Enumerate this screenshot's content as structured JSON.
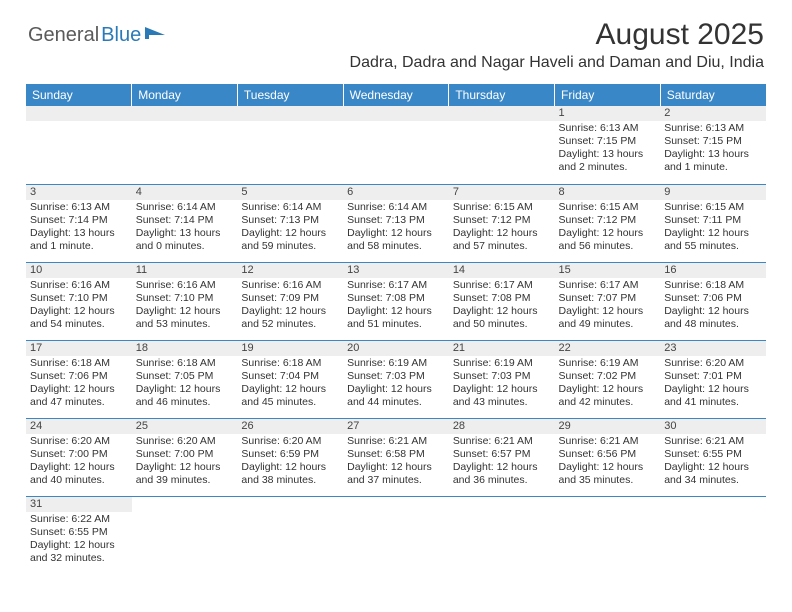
{
  "logo": {
    "part1": "General",
    "part2": "Blue"
  },
  "title": "August 2025",
  "location": "Dadra, Dadra and Nagar Haveli and Daman and Diu, India",
  "header_bg": "#3a87c7",
  "days_of_week": [
    "Sunday",
    "Monday",
    "Tuesday",
    "Wednesday",
    "Thursday",
    "Friday",
    "Saturday"
  ],
  "weeks": [
    [
      null,
      null,
      null,
      null,
      null,
      {
        "n": "1",
        "sunrise": "6:13 AM",
        "sunset": "7:15 PM",
        "daylight": "13 hours and 2 minutes."
      },
      {
        "n": "2",
        "sunrise": "6:13 AM",
        "sunset": "7:15 PM",
        "daylight": "13 hours and 1 minute."
      }
    ],
    [
      {
        "n": "3",
        "sunrise": "6:13 AM",
        "sunset": "7:14 PM",
        "daylight": "13 hours and 1 minute."
      },
      {
        "n": "4",
        "sunrise": "6:14 AM",
        "sunset": "7:14 PM",
        "daylight": "13 hours and 0 minutes."
      },
      {
        "n": "5",
        "sunrise": "6:14 AM",
        "sunset": "7:13 PM",
        "daylight": "12 hours and 59 minutes."
      },
      {
        "n": "6",
        "sunrise": "6:14 AM",
        "sunset": "7:13 PM",
        "daylight": "12 hours and 58 minutes."
      },
      {
        "n": "7",
        "sunrise": "6:15 AM",
        "sunset": "7:12 PM",
        "daylight": "12 hours and 57 minutes."
      },
      {
        "n": "8",
        "sunrise": "6:15 AM",
        "sunset": "7:12 PM",
        "daylight": "12 hours and 56 minutes."
      },
      {
        "n": "9",
        "sunrise": "6:15 AM",
        "sunset": "7:11 PM",
        "daylight": "12 hours and 55 minutes."
      }
    ],
    [
      {
        "n": "10",
        "sunrise": "6:16 AM",
        "sunset": "7:10 PM",
        "daylight": "12 hours and 54 minutes."
      },
      {
        "n": "11",
        "sunrise": "6:16 AM",
        "sunset": "7:10 PM",
        "daylight": "12 hours and 53 minutes."
      },
      {
        "n": "12",
        "sunrise": "6:16 AM",
        "sunset": "7:09 PM",
        "daylight": "12 hours and 52 minutes."
      },
      {
        "n": "13",
        "sunrise": "6:17 AM",
        "sunset": "7:08 PM",
        "daylight": "12 hours and 51 minutes."
      },
      {
        "n": "14",
        "sunrise": "6:17 AM",
        "sunset": "7:08 PM",
        "daylight": "12 hours and 50 minutes."
      },
      {
        "n": "15",
        "sunrise": "6:17 AM",
        "sunset": "7:07 PM",
        "daylight": "12 hours and 49 minutes."
      },
      {
        "n": "16",
        "sunrise": "6:18 AM",
        "sunset": "7:06 PM",
        "daylight": "12 hours and 48 minutes."
      }
    ],
    [
      {
        "n": "17",
        "sunrise": "6:18 AM",
        "sunset": "7:06 PM",
        "daylight": "12 hours and 47 minutes."
      },
      {
        "n": "18",
        "sunrise": "6:18 AM",
        "sunset": "7:05 PM",
        "daylight": "12 hours and 46 minutes."
      },
      {
        "n": "19",
        "sunrise": "6:18 AM",
        "sunset": "7:04 PM",
        "daylight": "12 hours and 45 minutes."
      },
      {
        "n": "20",
        "sunrise": "6:19 AM",
        "sunset": "7:03 PM",
        "daylight": "12 hours and 44 minutes."
      },
      {
        "n": "21",
        "sunrise": "6:19 AM",
        "sunset": "7:03 PM",
        "daylight": "12 hours and 43 minutes."
      },
      {
        "n": "22",
        "sunrise": "6:19 AM",
        "sunset": "7:02 PM",
        "daylight": "12 hours and 42 minutes."
      },
      {
        "n": "23",
        "sunrise": "6:20 AM",
        "sunset": "7:01 PM",
        "daylight": "12 hours and 41 minutes."
      }
    ],
    [
      {
        "n": "24",
        "sunrise": "6:20 AM",
        "sunset": "7:00 PM",
        "daylight": "12 hours and 40 minutes."
      },
      {
        "n": "25",
        "sunrise": "6:20 AM",
        "sunset": "7:00 PM",
        "daylight": "12 hours and 39 minutes."
      },
      {
        "n": "26",
        "sunrise": "6:20 AM",
        "sunset": "6:59 PM",
        "daylight": "12 hours and 38 minutes."
      },
      {
        "n": "27",
        "sunrise": "6:21 AM",
        "sunset": "6:58 PM",
        "daylight": "12 hours and 37 minutes."
      },
      {
        "n": "28",
        "sunrise": "6:21 AM",
        "sunset": "6:57 PM",
        "daylight": "12 hours and 36 minutes."
      },
      {
        "n": "29",
        "sunrise": "6:21 AM",
        "sunset": "6:56 PM",
        "daylight": "12 hours and 35 minutes."
      },
      {
        "n": "30",
        "sunrise": "6:21 AM",
        "sunset": "6:55 PM",
        "daylight": "12 hours and 34 minutes."
      }
    ],
    [
      {
        "n": "31",
        "sunrise": "6:22 AM",
        "sunset": "6:55 PM",
        "daylight": "12 hours and 32 minutes."
      },
      null,
      null,
      null,
      null,
      null,
      null
    ]
  ],
  "labels": {
    "sunrise": "Sunrise: ",
    "sunset": "Sunset: ",
    "daylight": "Daylight: "
  }
}
